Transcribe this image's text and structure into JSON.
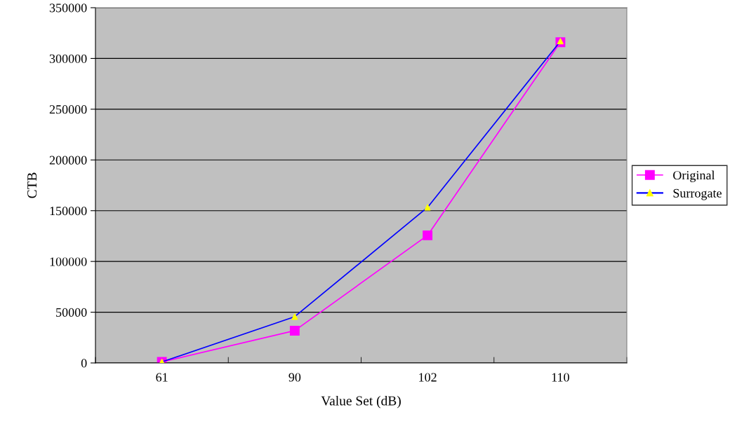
{
  "chart_data": {
    "type": "line",
    "xlabel": "Value Set (dB)",
    "ylabel": "CTB",
    "categories": [
      "61",
      "90",
      "102",
      "110"
    ],
    "series": [
      {
        "name": "Original",
        "color": "#ff00ff",
        "marker": "square",
        "values": [
          1000,
          31800,
          125700,
          316000
        ]
      },
      {
        "name": "Surrogate",
        "color": "#0000ff",
        "colors": [
          "#ffff00",
          "#ffff00",
          "#ffff00",
          "#ffff00"
        ],
        "marker": "triangle",
        "values": [
          1000,
          45600,
          153300,
          317000
        ]
      }
    ],
    "ylim": [
      0,
      350000
    ],
    "yticks": [
      0,
      50000,
      100000,
      150000,
      200000,
      250000,
      300000,
      350000
    ],
    "grid": "y",
    "legend": "right",
    "line_style": "solid"
  }
}
